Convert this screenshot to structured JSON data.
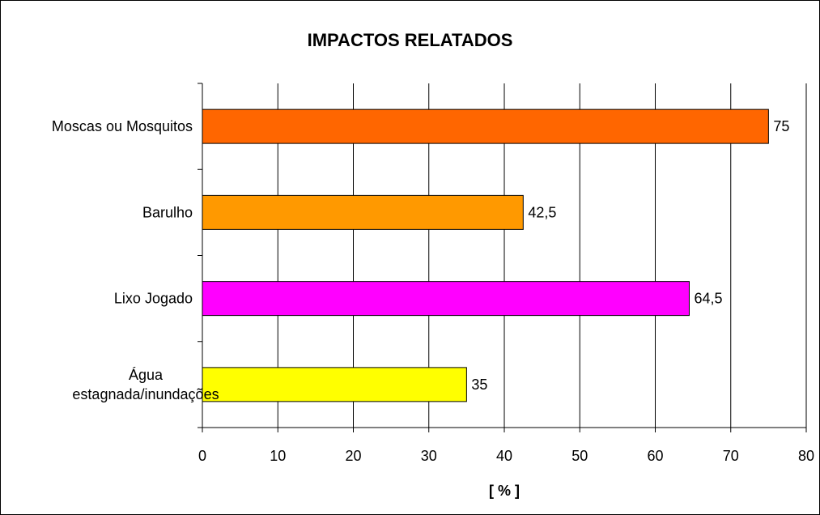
{
  "chart_data": {
    "type": "bar",
    "orientation": "horizontal",
    "title": "IMPACTOS RELATADOS",
    "xlabel": "[ % ]",
    "ylabel": "",
    "categories": [
      "Moscas ou Mosquitos",
      "Barulho",
      "Lixo Jogado",
      "Água estagnada/inundações"
    ],
    "values": [
      75,
      42.5,
      64.5,
      35
    ],
    "value_labels": [
      "75",
      "42,5",
      "64,5",
      "35"
    ],
    "colors": [
      "#FF6600",
      "#FF9900",
      "#FF00FF",
      "#FFFF00"
    ],
    "xlim": [
      0,
      80
    ],
    "xticks": [
      0,
      10,
      20,
      30,
      40,
      50,
      60,
      70,
      80
    ],
    "grid": true,
    "legend": "none"
  }
}
